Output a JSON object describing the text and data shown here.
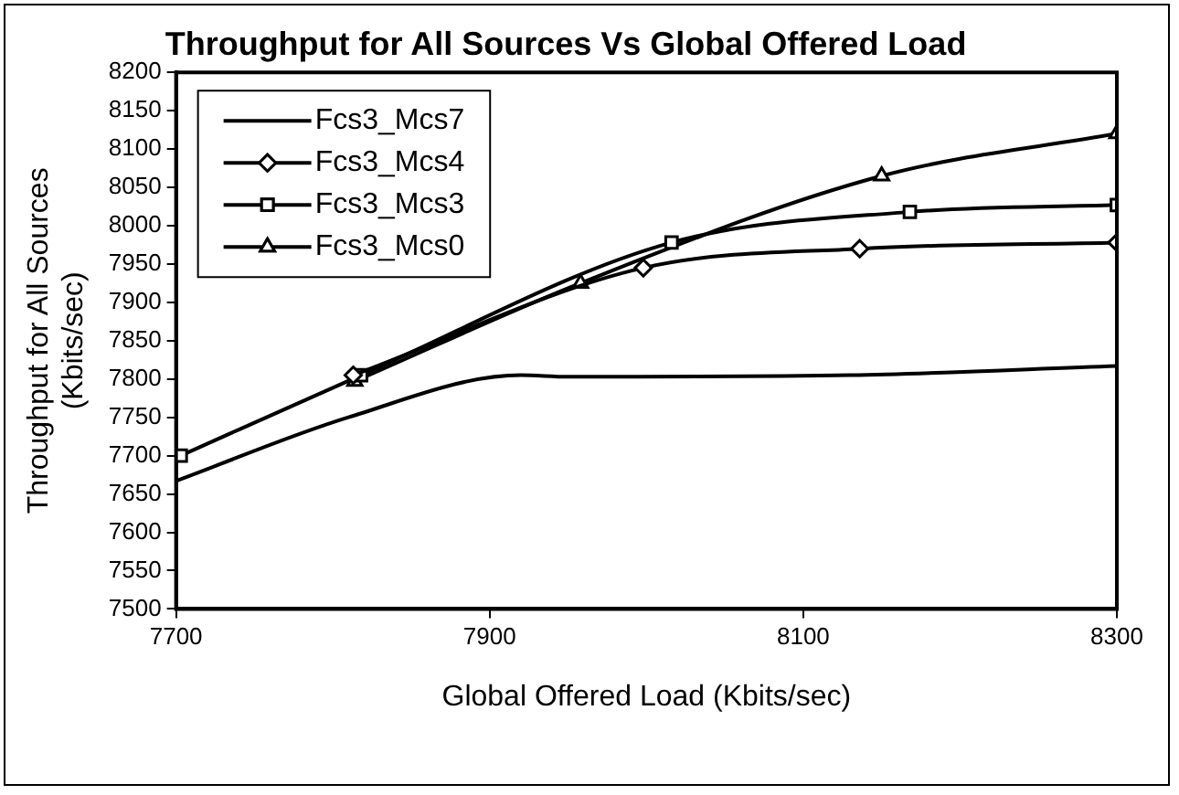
{
  "chart_data": {
    "type": "line",
    "title": "Throughput for All Sources Vs Global Offered Load",
    "xlabel": "Global Offered Load (Kbits/sec)",
    "ylabel": "Throughput for All Sources\n(Kbits/sec)",
    "xlim": [
      7700,
      8300
    ],
    "xticks": [
      7700,
      7900,
      8100,
      8300
    ],
    "ylim": [
      7500,
      8200
    ],
    "yticks": [
      7500,
      7550,
      7600,
      7650,
      7700,
      7750,
      7800,
      7850,
      7900,
      7950,
      8000,
      8050,
      8100,
      8150,
      8200
    ],
    "grid": false,
    "legend": "top left",
    "line_style": "solid",
    "series": [
      {
        "name": "Fcs3_Mcs7",
        "color": "#000000",
        "marker": "none",
        "x": [
          7700,
          7810,
          7920,
          7950,
          8130,
          8300
        ],
        "values": [
          7667,
          7750,
          7805,
          7803,
          7805,
          7817
        ]
      },
      {
        "name": "Fcs3_Mcs4",
        "color": "#000000",
        "marker": "diamond",
        "x": [
          7813,
          7998,
          8136,
          8300
        ],
        "values": [
          7805,
          7945,
          7970,
          7978
        ]
      },
      {
        "name": "Fcs3_Mcs3",
        "color": "#000000",
        "marker": "square",
        "x": [
          7703,
          7818,
          8016,
          8168,
          8300
        ],
        "values": [
          7700,
          7805,
          7978,
          8018,
          8027
        ]
      },
      {
        "name": "Fcs3_Mcs0",
        "color": "#000000",
        "marker": "triangle",
        "x": [
          7814,
          7958,
          8150,
          8300
        ],
        "values": [
          7797,
          7925,
          8065,
          8120
        ]
      }
    ]
  }
}
